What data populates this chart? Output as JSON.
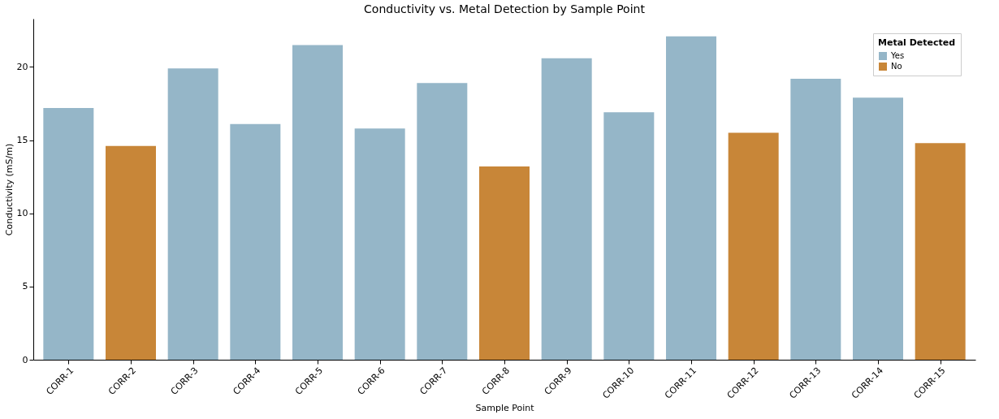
{
  "chart_data": {
    "type": "bar",
    "title": "Conductivity vs. Metal Detection by Sample Point",
    "xlabel": "Sample Point",
    "ylabel": "Conductivity (mS/m)",
    "legend_title": "Metal Detected",
    "legend": "top right",
    "grid": false,
    "categories": [
      "CORR-1",
      "CORR-2",
      "CORR-3",
      "CORR-4",
      "CORR-5",
      "CORR-6",
      "CORR-7",
      "CORR-8",
      "CORR-9",
      "CORR-10",
      "CORR-11",
      "CORR-12",
      "CORR-13",
      "CORR-14",
      "CORR-15"
    ],
    "ylim": [
      0,
      23.3
    ],
    "yticks": [
      0,
      5,
      10,
      15,
      20
    ],
    "series": [
      {
        "name": "Yes",
        "color": "#95b6c8",
        "values": [
          17.2,
          null,
          19.9,
          16.1,
          21.5,
          15.8,
          18.9,
          null,
          20.6,
          16.9,
          22.1,
          null,
          19.2,
          17.9,
          null
        ]
      },
      {
        "name": "No",
        "color": "#c88638",
        "values": [
          null,
          14.6,
          null,
          null,
          null,
          null,
          null,
          13.2,
          null,
          null,
          null,
          15.5,
          null,
          null,
          14.8
        ]
      }
    ]
  }
}
